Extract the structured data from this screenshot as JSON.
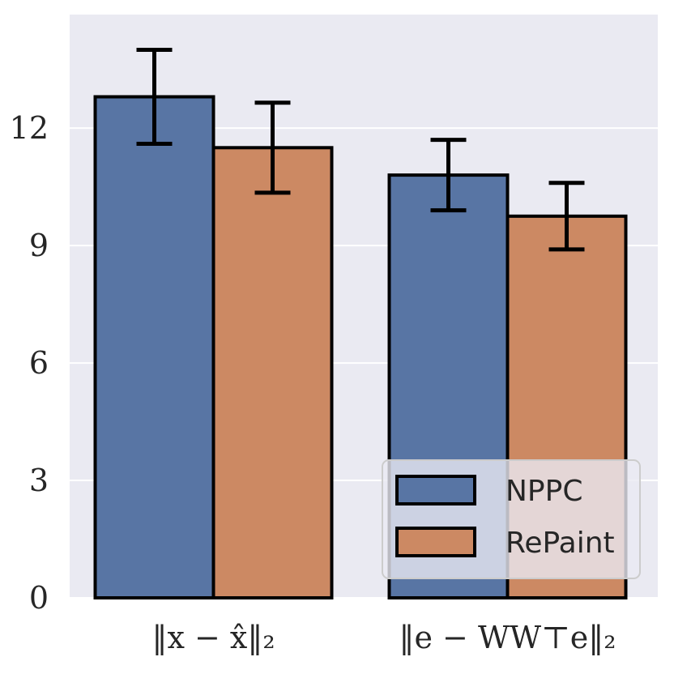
{
  "chart_data": {
    "type": "bar",
    "title": "",
    "xlabel": "",
    "ylabel": "",
    "categories": [
      "‖x − x̂‖₂",
      "‖e − WW⊤e‖₂"
    ],
    "series": [
      {
        "name": "NPPC",
        "values": [
          12.8,
          10.8
        ],
        "error": [
          1.2,
          0.9
        ],
        "color": "#5875a4"
      },
      {
        "name": "RePaint",
        "values": [
          11.5,
          9.75
        ],
        "error": [
          1.15,
          0.85
        ],
        "color": "#cc8963"
      }
    ],
    "ylim": [
      0,
      14.9
    ],
    "yticks": [
      "0",
      "3",
      "6",
      "9",
      "12"
    ],
    "grid": true,
    "legend_position": "bottom-right"
  }
}
